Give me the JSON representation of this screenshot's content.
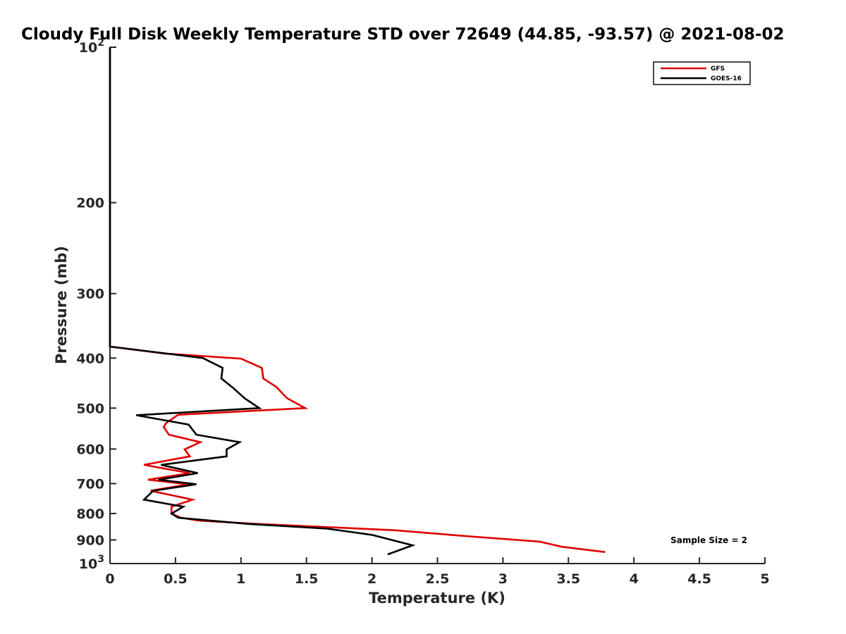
{
  "chart_data": {
    "type": "line",
    "title": "Cloudy Full Disk Weekly Temperature STD over 72649 (44.85, -93.57) @ 2021-08-02",
    "xlabel": "Temperature (K)",
    "ylabel": "Pressure (mb)",
    "xlim": [
      0,
      5
    ],
    "ylim": [
      100,
      1000
    ],
    "y_scale": "log",
    "y_reversed": true,
    "grid": false,
    "legend_position": "top-right",
    "x_ticks": [
      0,
      0.5,
      1,
      1.5,
      2,
      2.5,
      3,
      3.5,
      4,
      4.5,
      5
    ],
    "x_tick_labels": [
      "0",
      "0.5",
      "1",
      "1.5",
      "2",
      "2.5",
      "3",
      "3.5",
      "4",
      "4.5",
      "5"
    ],
    "y_ticks": [
      100,
      200,
      300,
      400,
      500,
      600,
      700,
      800,
      900,
      1000
    ],
    "y_tick_labels": [
      {
        "base": "10",
        "exp": "2"
      },
      {
        "base": "200",
        "exp": ""
      },
      {
        "base": "300",
        "exp": ""
      },
      {
        "base": "400",
        "exp": ""
      },
      {
        "base": "500",
        "exp": ""
      },
      {
        "base": "600",
        "exp": ""
      },
      {
        "base": "700",
        "exp": ""
      },
      {
        "base": "800",
        "exp": ""
      },
      {
        "base": "900",
        "exp": ""
      },
      {
        "base": "10",
        "exp": "3"
      }
    ],
    "series": [
      {
        "name": "GFS",
        "color": "#e00000",
        "points": [
          [
            0,
            100
          ],
          [
            0,
            380
          ],
          [
            0.42,
            392
          ],
          [
            1.0,
            401
          ],
          [
            1.16,
            418
          ],
          [
            1.17,
            438
          ],
          [
            1.27,
            455
          ],
          [
            1.35,
            478
          ],
          [
            1.49,
            500
          ],
          [
            0.52,
            515
          ],
          [
            0.43,
            534
          ],
          [
            0.41,
            544
          ],
          [
            0.45,
            563
          ],
          [
            0.69,
            582
          ],
          [
            0.57,
            601
          ],
          [
            0.61,
            620
          ],
          [
            0.26,
            644
          ],
          [
            0.61,
            668
          ],
          [
            0.29,
            688
          ],
          [
            0.6,
            702
          ],
          [
            0.31,
            723
          ],
          [
            0.63,
            752
          ],
          [
            0.47,
            776
          ],
          [
            0.47,
            800
          ],
          [
            0.54,
            815
          ],
          [
            0.68,
            826
          ],
          [
            1.12,
            838
          ],
          [
            1.57,
            848
          ],
          [
            2.17,
            862
          ],
          [
            2.75,
            886
          ],
          [
            3.28,
            907
          ],
          [
            3.45,
            928
          ],
          [
            3.78,
            950
          ]
        ]
      },
      {
        "name": "GOES-16",
        "color": "#000000",
        "points": [
          [
            0,
            100
          ],
          [
            0,
            380
          ],
          [
            0.71,
            400
          ],
          [
            0.86,
            418
          ],
          [
            0.85,
            438
          ],
          [
            0.94,
            457
          ],
          [
            1.03,
            479
          ],
          [
            1.14,
            500
          ],
          [
            0.2,
            516
          ],
          [
            0.6,
            538
          ],
          [
            0.66,
            563
          ],
          [
            0.99,
            582
          ],
          [
            0.89,
            601
          ],
          [
            0.89,
            620
          ],
          [
            0.39,
            644
          ],
          [
            0.67,
            668
          ],
          [
            0.37,
            688
          ],
          [
            0.66,
            702
          ],
          [
            0.33,
            723
          ],
          [
            0.26,
            752
          ],
          [
            0.56,
            776
          ],
          [
            0.47,
            800
          ],
          [
            0.52,
            815
          ],
          [
            1.05,
            838
          ],
          [
            1.66,
            856
          ],
          [
            2.0,
            880
          ],
          [
            2.31,
            922
          ],
          [
            2.12,
            960
          ]
        ]
      }
    ],
    "annotations": [
      "Sample Size = 2"
    ]
  }
}
